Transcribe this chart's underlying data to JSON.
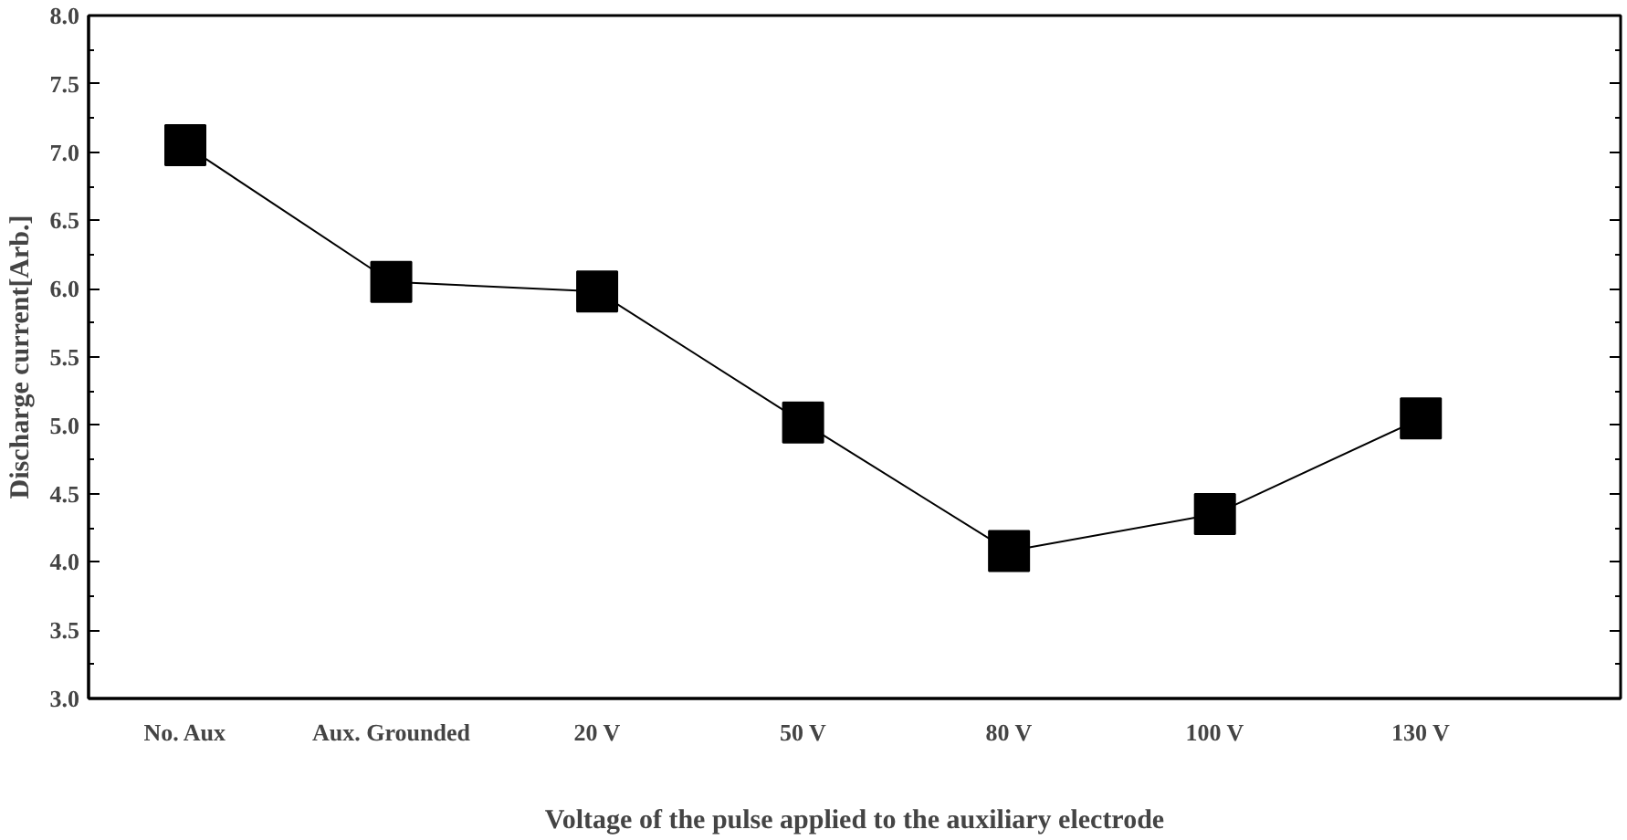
{
  "chart_data": {
    "type": "line",
    "xlabel": "Voltage of the pulse applied to the auxiliary electrode",
    "ylabel": "Discharge current[Arb.]",
    "categories": [
      "No. Aux",
      "Aux. Grounded",
      "20 V",
      "50 V",
      "80 V",
      "100 V",
      "130 V"
    ],
    "series": [
      {
        "color": "#000000",
        "values": [
          7.05,
          6.05,
          5.98,
          5.02,
          4.08,
          4.35,
          5.05
        ]
      }
    ],
    "ylim": [
      3.0,
      8.0
    ],
    "yticks": [
      {
        "value": 3.0,
        "label": "3.0"
      },
      {
        "value": 3.5,
        "label": "3.5"
      },
      {
        "value": 4.0,
        "label": "4.0"
      },
      {
        "value": 4.5,
        "label": "4.5"
      },
      {
        "value": 5.0,
        "label": "5.0"
      },
      {
        "value": 5.5,
        "label": "5.5"
      },
      {
        "value": 6.0,
        "label": "6.0"
      },
      {
        "value": 6.5,
        "label": "6.5"
      },
      {
        "value": 7.0,
        "label": "7.0"
      },
      {
        "value": 7.5,
        "label": "7.5"
      },
      {
        "value": 8.0,
        "label": "8.0"
      }
    ],
    "grid": false,
    "marker": "square",
    "line_style": "solid"
  }
}
